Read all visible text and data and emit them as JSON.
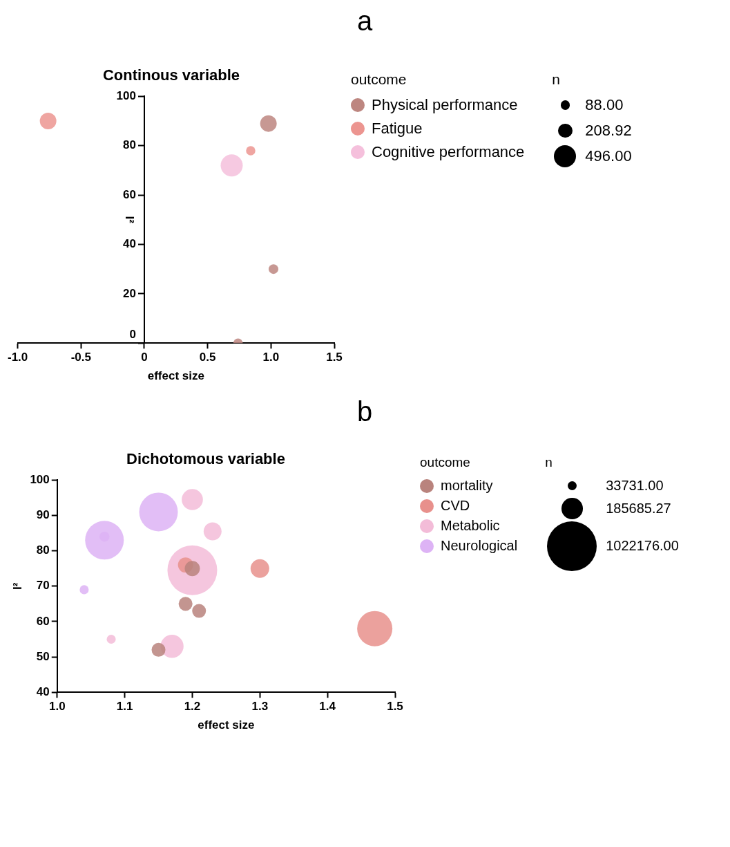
{
  "chart_data": [
    {
      "type": "bubble",
      "title": "Continous variable",
      "xlabel": "effect size",
      "ylabel": "I²",
      "legend_title": "outcome",
      "annotations": [
        "a",
        "n"
      ],
      "xlim": [
        -1.0,
        1.5
      ],
      "xticks": [
        {
          "value": -1.0,
          "label": "-1.0"
        },
        {
          "value": -0.5,
          "label": "-0.5"
        },
        0,
        0.5,
        {
          "value": 1.0,
          "label": "1.0"
        },
        1.5
      ],
      "ylim": [
        0,
        100
      ],
      "yticks": [
        0,
        20,
        40,
        60,
        80,
        100
      ],
      "grid": false,
      "legend": "right",
      "marker": "circle",
      "size_legend": [
        {
          "value": 88,
          "label": "88.00"
        },
        {
          "value": 208.92,
          "label": "208.92"
        },
        {
          "value": 496,
          "label": "496.00"
        }
      ],
      "series": [
        {
          "name": "Physical performance",
          "color": "#bd8680",
          "x": [
            0.98,
            1.02,
            0.74
          ],
          "values": [
            89,
            30,
            0
          ],
          "sizes": [
            278,
            95,
            88
          ]
        },
        {
          "name": "Fatigue",
          "color": "#ec9590",
          "x": [
            -0.76,
            0.84
          ],
          "values": [
            90,
            78
          ],
          "sizes": [
            278,
            88
          ]
        },
        {
          "name": "Cognitive performance",
          "color": "#f5c0dc",
          "x": [
            0.69
          ],
          "values": [
            72
          ],
          "sizes": [
            496
          ]
        }
      ]
    },
    {
      "type": "bubble",
      "title": "Dichotomous variable",
      "xlabel": "effect size",
      "ylabel": "I²",
      "legend_title": "outcome",
      "annotations": [
        "b",
        "n"
      ],
      "xlim": [
        1.0,
        1.5
      ],
      "xticks": [
        {
          "value": 1.0,
          "label": "1.0"
        },
        1.1,
        1.2,
        1.3,
        1.4,
        1.5
      ],
      "ylim": [
        40,
        100
      ],
      "yticks": [
        40,
        50,
        60,
        70,
        80,
        90,
        100
      ],
      "grid": false,
      "legend": "right",
      "marker": "circle",
      "size_legend": [
        {
          "value": 33731,
          "label": "33731.00"
        },
        {
          "value": 185685.27,
          "label": "185685.27"
        },
        {
          "value": 1022176,
          "label": "1022176.00"
        }
      ],
      "series": [
        {
          "name": "mortality",
          "color": "#b9837d",
          "x": [
            1.2,
            1.19,
            1.21,
            1.15
          ],
          "values": [
            75,
            65,
            63,
            52
          ],
          "sizes": [
            95000,
            79000,
            79000,
            79000
          ]
        },
        {
          "name": "CVD",
          "color": "#e8908c",
          "x": [
            1.19,
            1.3,
            1.47
          ],
          "values": [
            76,
            75,
            58
          ],
          "sizes": [
            95000,
            144000,
            513000
          ]
        },
        {
          "name": "Metabolic",
          "color": "#f3bcd8",
          "x": [
            1.2,
            1.23,
            1.2,
            1.08,
            1.17
          ],
          "values": [
            94.5,
            85.5,
            74.5,
            55,
            53
          ],
          "sizes": [
            185000,
            133000,
            1022176,
            33731,
            220000
          ]
        },
        {
          "name": "Neurological",
          "color": "#ddb3f5",
          "x": [
            1.15,
            1.07,
            1.07,
            1.04
          ],
          "values": [
            91,
            83,
            84,
            69
          ],
          "sizes": [
            618000,
            618000,
            42000,
            33731
          ]
        }
      ]
    }
  ]
}
